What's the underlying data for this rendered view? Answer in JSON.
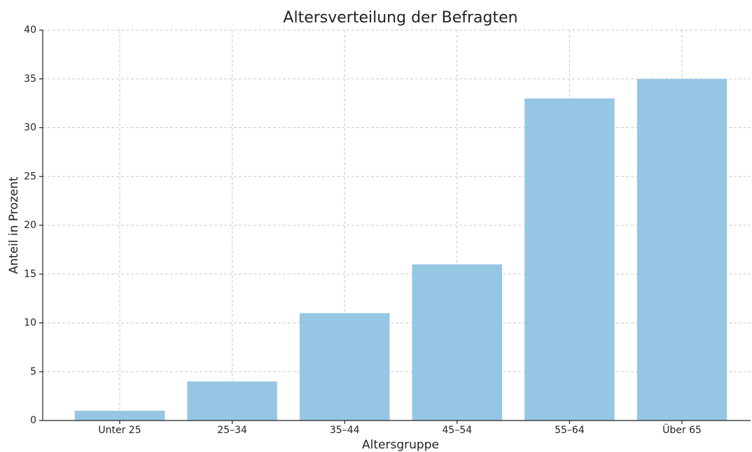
{
  "chart_data": {
    "type": "bar",
    "title": "Altersverteilung der Befragten",
    "x_label": "Altersgruppe",
    "y_label": "Anteil in Prozent",
    "categories": [
      "Unter 25",
      "25–34",
      "35–44",
      "45–54",
      "55–64",
      "Über 65"
    ],
    "values": [
      1,
      4,
      11,
      16,
      33,
      35
    ],
    "color": "#95c6e4",
    "ylim": [
      0,
      40
    ],
    "yticks": [
      0,
      5,
      10,
      15,
      20,
      25,
      30,
      35,
      40
    ],
    "grid": true
  }
}
